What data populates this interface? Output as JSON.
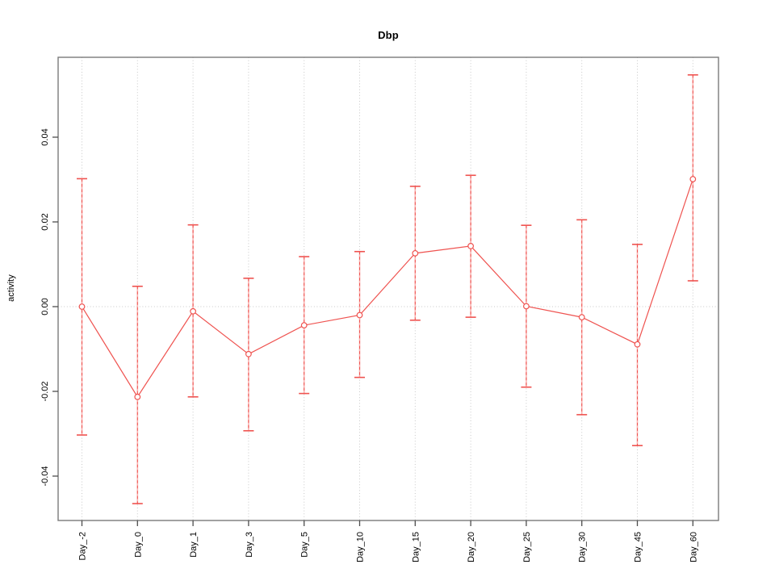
{
  "chart_data": {
    "type": "line",
    "title": "Dbp",
    "xlabel": "",
    "ylabel": "activity",
    "categories": [
      "Day_-2",
      "Day_0",
      "Day_1",
      "Day_3",
      "Day_5",
      "Day_10",
      "Day_15",
      "Day_20",
      "Day_25",
      "Day_30",
      "Day_45",
      "Day_60"
    ],
    "series": [
      {
        "name": "activity",
        "values": [
          0.0,
          -0.0213,
          -0.0011,
          -0.0112,
          -0.0044,
          -0.002,
          0.0126,
          0.0143,
          0.0001,
          -0.0025,
          -0.0089,
          0.0301
        ]
      }
    ],
    "error_bars": {
      "lower": [
        -0.0303,
        -0.0465,
        -0.0213,
        -0.0293,
        -0.0205,
        -0.0167,
        -0.0032,
        -0.0025,
        -0.019,
        -0.0255,
        -0.0328,
        0.0061
      ],
      "upper": [
        0.0302,
        0.0048,
        0.0193,
        0.0067,
        0.0118,
        0.013,
        0.0284,
        0.031,
        0.0192,
        0.0205,
        0.0147,
        0.0547
      ]
    },
    "yticks": [
      -0.04,
      -0.02,
      0.0,
      0.02,
      0.04
    ],
    "ytick_labels": [
      "-0.04",
      "-0.02",
      "0.00",
      "0.02",
      "0.04"
    ],
    "ylim": [
      -0.0505,
      0.0589
    ],
    "grid": "dotted vertical line at each category; dotted horizontal line at y=0",
    "legend": "none",
    "marker": "open-circle",
    "error_stem_style": "dashed",
    "colors": {
      "series": "#ef5350",
      "series_light": "#f9b2b0",
      "grid": "#c8c8c8",
      "box": "#7a7a7a",
      "tick": "#4d4d4d",
      "text": "#000000",
      "background": "#ffffff"
    }
  }
}
